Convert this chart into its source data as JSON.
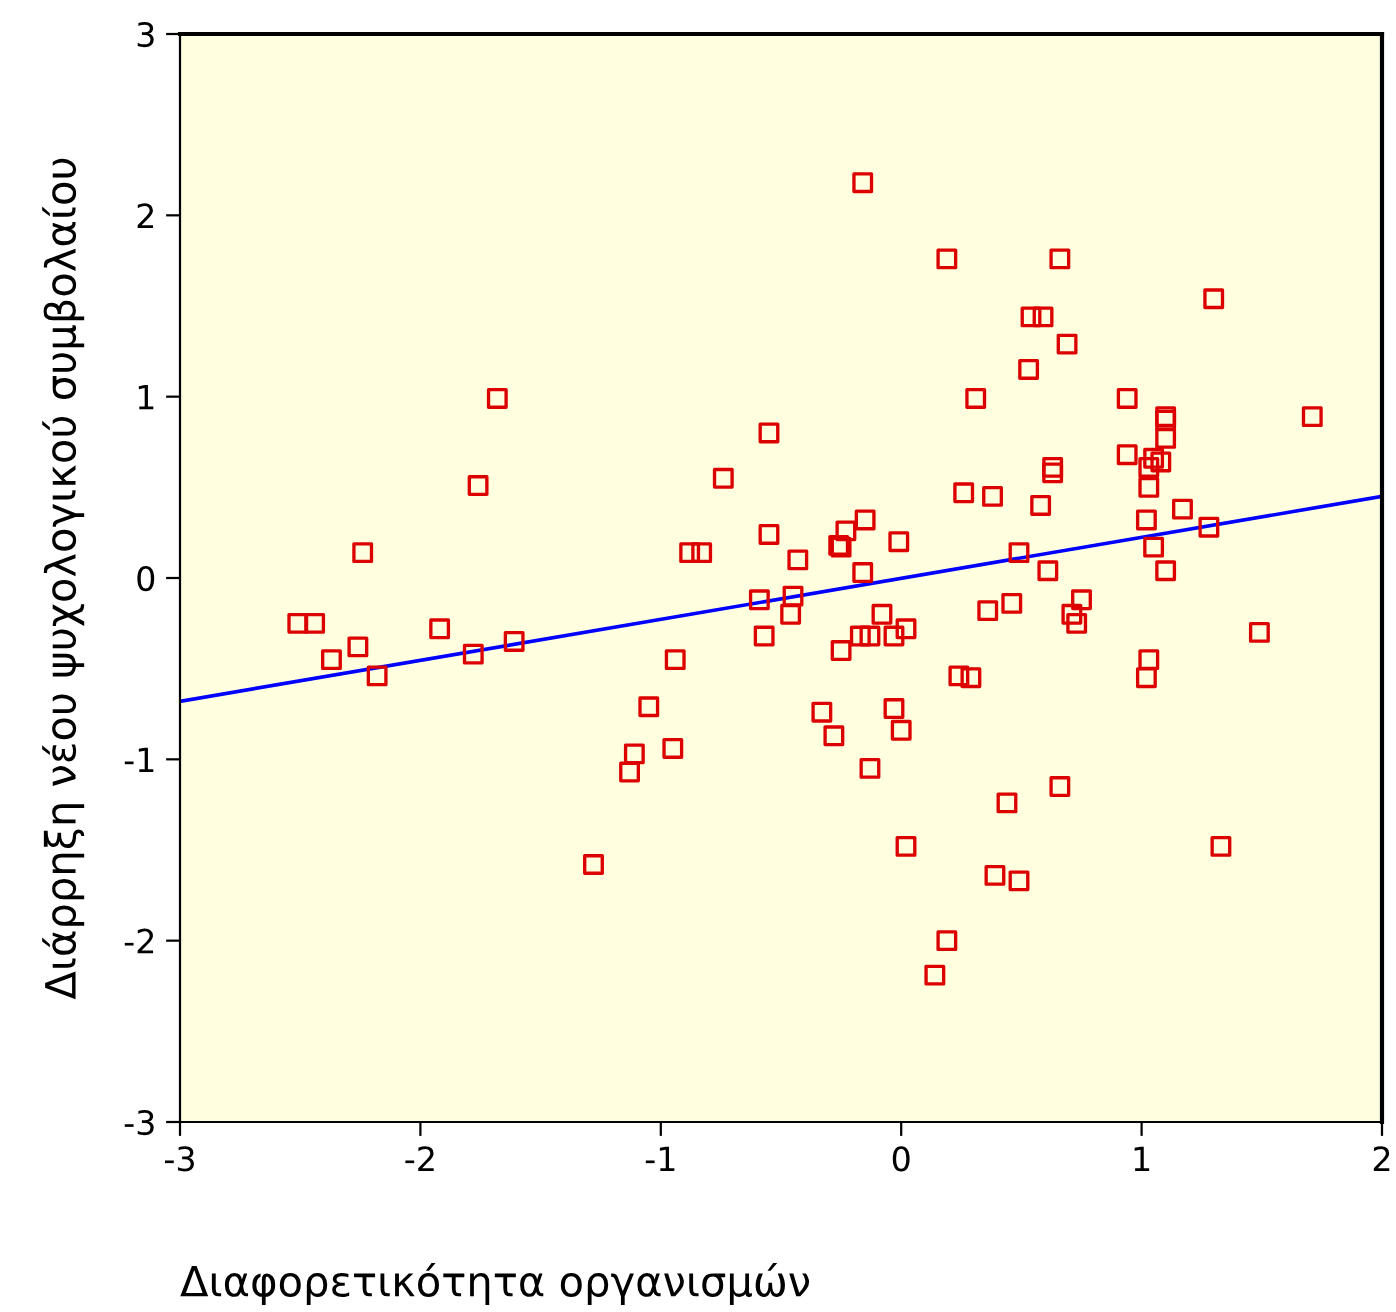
{
  "chart_data": {
    "type": "scatter",
    "xlabel": "Διαφορετικότητα οργανισμών",
    "ylabel": "Διάρρηξη νέου ψυχολογικού συμβολαίου",
    "xlim": [
      -3,
      2
    ],
    "ylim": [
      -3,
      3
    ],
    "xticks": [
      -3,
      -2,
      -1,
      0,
      1,
      2
    ],
    "yticks": [
      -3,
      -2,
      -1,
      0,
      1,
      2,
      3
    ],
    "grid": false,
    "legend": false,
    "marker": "square",
    "series": [
      {
        "color": "#dd0000",
        "x": [
          -2.51,
          -2.44,
          -2.37,
          -2.26,
          -2.24,
          -2.18,
          -1.92,
          -1.78,
          -1.76,
          -1.68,
          -1.61,
          -1.28,
          -1.13,
          -1.11,
          -1.05,
          -0.95,
          -0.94,
          -0.88,
          -0.83,
          -0.74,
          -0.59,
          -0.57,
          -0.55,
          -0.55,
          -0.16,
          0.19,
          0.66,
          0.54,
          0.59,
          1.3,
          0.69,
          0.53,
          0.31,
          0.94,
          1.71,
          1.1,
          1.1,
          1.1,
          0.94,
          0.63,
          0.63,
          1.05,
          1.08,
          1.03,
          1.03,
          0.26,
          0.38,
          0.58,
          1.17,
          1.02,
          -0.15,
          -0.23,
          -0.26,
          -0.25,
          -0.01,
          1.28,
          -0.43,
          0.49,
          1.05,
          -0.16,
          0.61,
          1.1,
          -0.45,
          -0.46,
          -0.08,
          -0.25,
          -0.17,
          -0.13,
          -0.03,
          0.02,
          0.36,
          0.46,
          0.71,
          0.75,
          0.73,
          1.49,
          0.24,
          0.29,
          1.03,
          1.02,
          -0.33,
          -0.03,
          -0.28,
          0.0,
          -0.13,
          0.44,
          0.66,
          0.02,
          1.33,
          0.39,
          0.49,
          0.19,
          0.14
        ],
        "values": [
          -0.25,
          -0.25,
          -0.45,
          -0.38,
          0.14,
          -0.54,
          -0.28,
          -0.42,
          0.51,
          0.99,
          -0.35,
          -1.58,
          -1.07,
          -0.97,
          -0.71,
          -0.94,
          -0.45,
          0.14,
          0.14,
          0.55,
          -0.12,
          -0.32,
          0.8,
          0.24,
          2.18,
          1.76,
          1.76,
          1.44,
          1.44,
          1.54,
          1.29,
          1.15,
          0.99,
          0.99,
          0.89,
          0.89,
          0.87,
          0.77,
          0.68,
          0.61,
          0.58,
          0.66,
          0.64,
          0.61,
          0.5,
          0.47,
          0.45,
          0.4,
          0.38,
          0.32,
          0.32,
          0.26,
          0.18,
          0.17,
          0.2,
          0.28,
          0.1,
          0.14,
          0.17,
          0.03,
          0.04,
          0.04,
          -0.1,
          -0.2,
          -0.2,
          -0.4,
          -0.32,
          -0.32,
          -0.32,
          -0.28,
          -0.18,
          -0.14,
          -0.2,
          -0.12,
          -0.25,
          -0.3,
          -0.54,
          -0.55,
          -0.45,
          -0.55,
          -0.74,
          -0.72,
          -0.87,
          -0.84,
          -1.05,
          -1.24,
          -1.15,
          -1.48,
          -1.48,
          -1.64,
          -1.67,
          -2.0,
          -2.19
        ]
      },
      {
        "type": "line",
        "color": "#0000ff",
        "marker": "none",
        "x": [
          -3,
          2
        ],
        "values": [
          -0.68,
          0.45
        ]
      }
    ]
  }
}
